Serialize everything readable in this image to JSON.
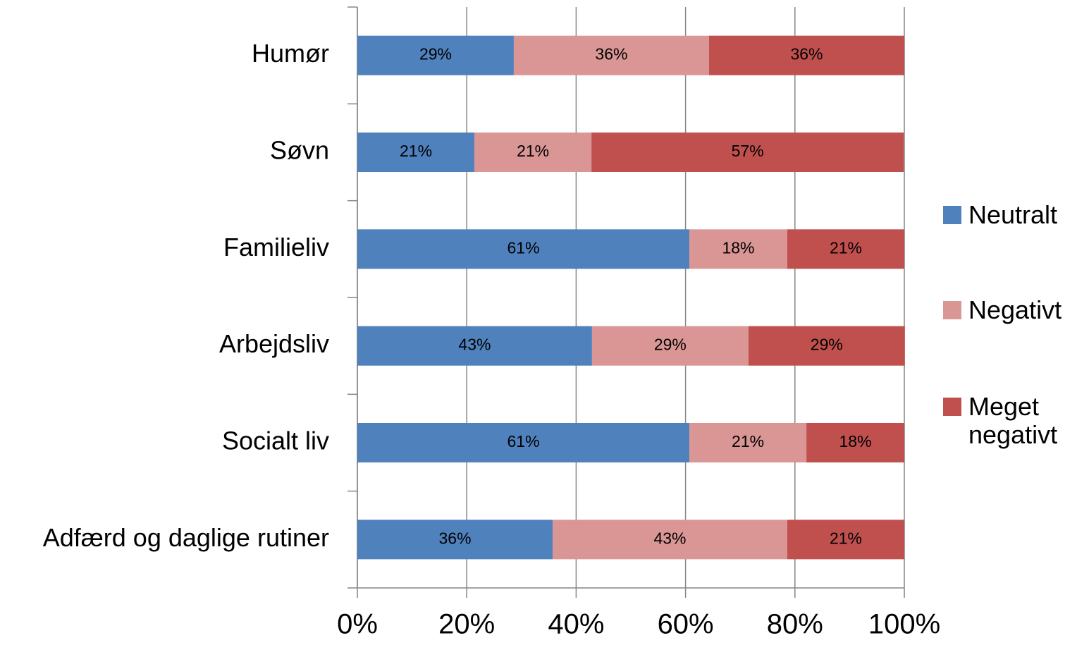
{
  "chart_data": {
    "type": "stacked_bar_horizontal",
    "categories": [
      "Humør",
      "Søvn",
      "Familieliv",
      "Arbejdsliv",
      "Socialt liv",
      "Adfærd og  daglige rutiner"
    ],
    "series": [
      {
        "name": "Neutralt",
        "color": "#4f81bd",
        "values": [
          28.6,
          21.4,
          60.7,
          42.9,
          60.7,
          35.7
        ],
        "value_labels": [
          "29%",
          "21%",
          "61%",
          "43%",
          "61%",
          "36%"
        ]
      },
      {
        "name": "Negativt",
        "color": "#d99694",
        "values": [
          35.7,
          21.4,
          17.9,
          28.6,
          21.4,
          42.9
        ],
        "value_labels": [
          "36%",
          "21%",
          "18%",
          "29%",
          "21%",
          "43%"
        ]
      },
      {
        "name": "Meget negativt",
        "color": "#c0504d",
        "values": [
          35.7,
          57.1,
          21.4,
          28.6,
          17.9,
          21.4
        ],
        "value_labels": [
          "36%",
          "57%",
          "21%",
          "29%",
          "18%",
          "21%"
        ]
      }
    ],
    "xlim": [
      0,
      100
    ],
    "xticks": [
      {
        "value": 0,
        "label": "0%"
      },
      {
        "value": 20,
        "label": "20%"
      },
      {
        "value": 40,
        "label": "40%"
      },
      {
        "value": 60,
        "label": "60%"
      },
      {
        "value": 80,
        "label": "80%"
      },
      {
        "value": 100,
        "label": "100%"
      }
    ],
    "grid": true,
    "legend": "right"
  }
}
